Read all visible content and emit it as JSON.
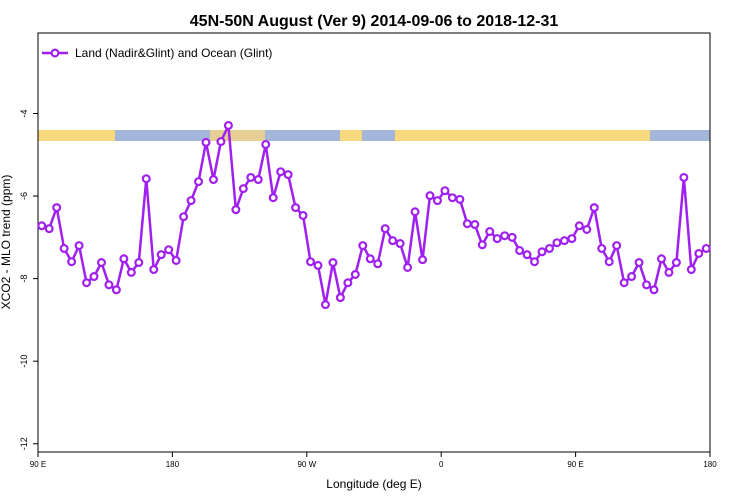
{
  "chart_data": {
    "type": "line",
    "title": "45N-50N August (Ver 9)   2014-09-06 to 2018-12-31",
    "x_label": "Longitude (deg E)",
    "y_label": "XCO2 - MLO trend (ppm)",
    "xlim": [
      90,
      540
    ],
    "ylim": [
      -12.2,
      -2.05
    ],
    "xticks": [
      {
        "value": 90,
        "label": "90 E"
      },
      {
        "value": 180,
        "label": "180"
      },
      {
        "value": 270,
        "label": "90 W"
      },
      {
        "value": 360,
        "label": "0"
      },
      {
        "value": 450,
        "label": "90 E"
      },
      {
        "value": 540,
        "label": "180"
      }
    ],
    "yticks": [
      -4,
      -6,
      -8,
      -10,
      -12
    ],
    "legend_position": "upper left",
    "x": [
      92.5,
      97.5,
      102.5,
      107.5,
      112.5,
      117.5,
      122.5,
      127.5,
      132.5,
      137.5,
      142.5,
      147.5,
      152.5,
      157.5,
      162.5,
      167.5,
      172.5,
      177.5,
      182.5,
      187.5,
      192.5,
      197.5,
      202.5,
      207.5,
      212.5,
      217.5,
      222.5,
      227.5,
      232.5,
      237.5,
      242.5,
      247.5,
      252.5,
      257.5,
      262.5,
      267.5,
      272.5,
      277.5,
      282.5,
      287.5,
      292.5,
      297.5,
      302.5,
      307.5,
      312.5,
      317.5,
      322.5,
      327.5,
      332.5,
      337.5,
      342.5,
      347.5,
      352.5,
      357.5,
      362.5,
      367.5,
      372.5,
      377.5,
      382.5,
      387.5,
      392.5,
      397.5,
      402.5,
      407.5,
      412.5,
      417.5,
      422.5,
      427.5,
      432.5,
      437.5,
      442.5,
      447.5,
      452.5,
      457.5,
      462.5,
      467.5,
      472.5,
      477.5,
      482.5,
      487.5,
      492.5,
      497.5,
      502.5,
      507.5,
      512.5,
      517.5,
      522.5,
      527.5,
      532.5,
      537.5
    ],
    "series": [
      {
        "name": "Land (Nadir&Glint) and Ocean (Glint)",
        "color": "#a020f0",
        "values": [
          -6.72,
          -6.79,
          -6.28,
          -7.27,
          -7.59,
          -7.2,
          -8.1,
          -7.95,
          -7.61,
          -8.15,
          -8.27,
          -7.52,
          -7.85,
          -7.61,
          -5.58,
          -7.78,
          -7.42,
          -7.3,
          -7.56,
          -6.5,
          -6.11,
          -5.65,
          -4.7,
          -5.6,
          -4.68,
          -4.29,
          -6.33,
          -5.82,
          -5.55,
          -5.6,
          -4.75,
          -6.04,
          -5.41,
          -5.48,
          -6.28,
          -6.47,
          -7.59,
          -7.68,
          -8.63,
          -7.61,
          -8.46,
          -8.1,
          -7.9,
          -7.2,
          -7.52,
          -7.64,
          -6.79,
          -7.08,
          -7.15,
          -7.73,
          -6.38,
          -7.54,
          -5.99,
          -6.11,
          -5.87,
          -6.04,
          -6.08,
          -6.67,
          -6.69,
          -7.18,
          -6.86,
          -7.03,
          -6.96,
          -7.0,
          -7.32,
          -7.42,
          -7.59,
          -7.35,
          -7.27,
          -7.13,
          -7.08,
          -7.03,
          -6.72,
          -6.81,
          -6.28,
          -7.27,
          -7.59,
          -7.2,
          -8.1,
          -7.95,
          -7.61,
          -8.15,
          -8.27,
          -7.52,
          -7.85,
          -7.61,
          -5.55,
          -7.78,
          -7.39,
          -7.27
        ]
      }
    ]
  }
}
